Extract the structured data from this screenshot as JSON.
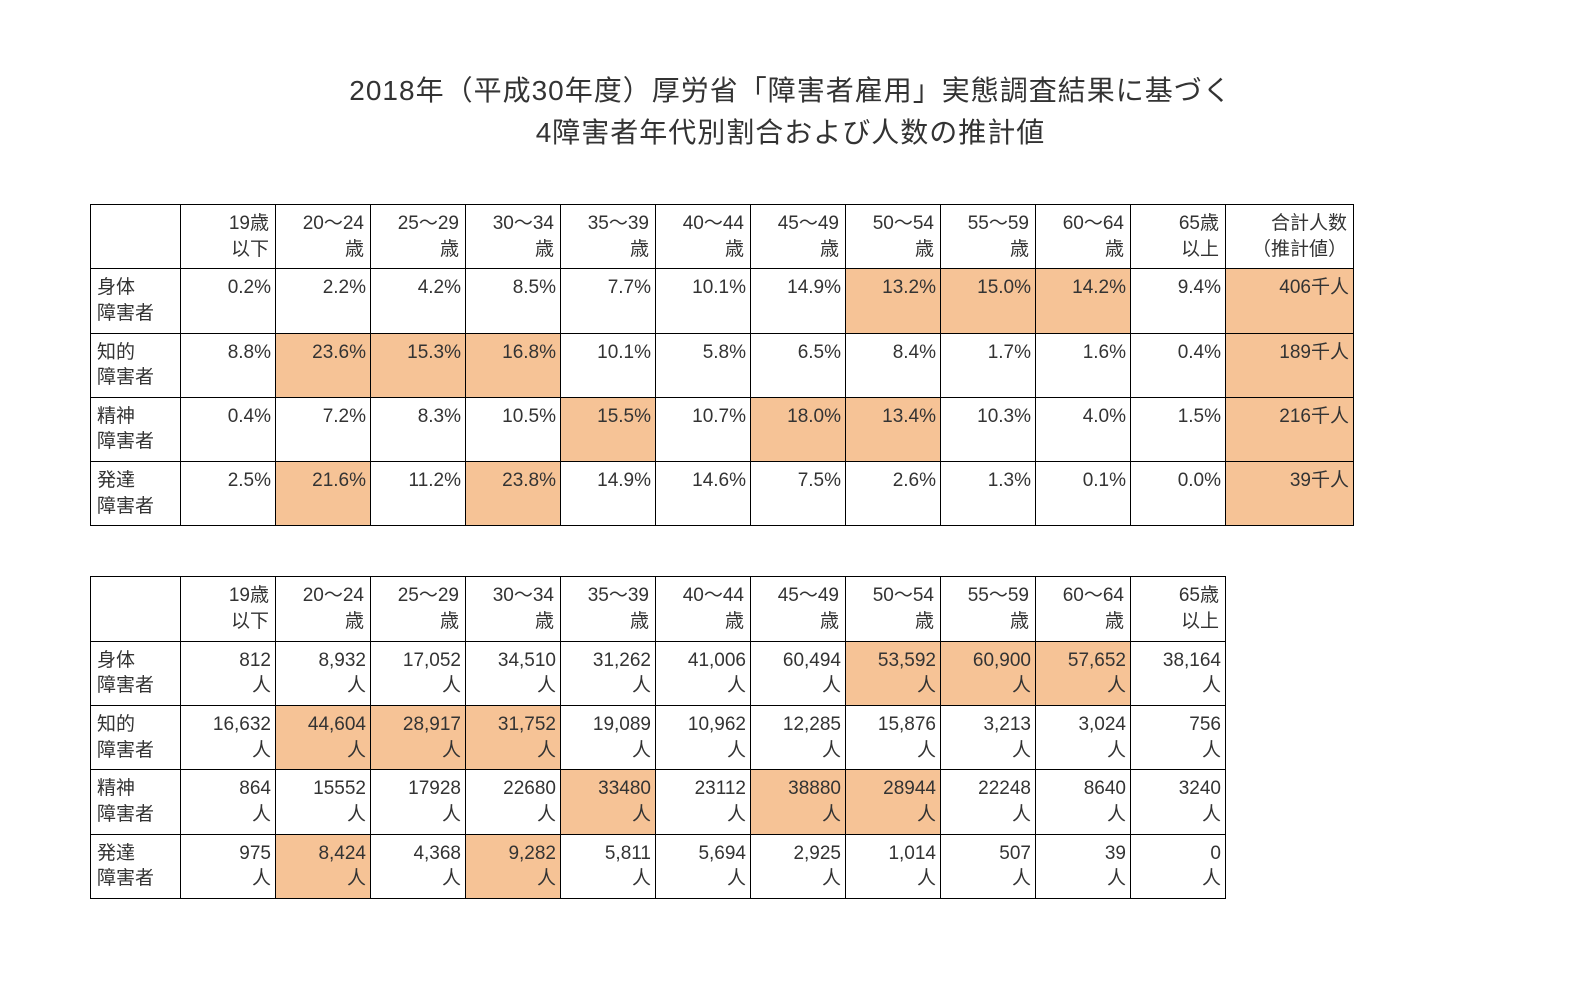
{
  "title_line1": "2018年（平成30年度）厚労省「障害者雇用」実態調査結果に基づく",
  "title_line2": "4障害者年代別割合および人数の推計値",
  "colors": {
    "background": "#ffffff",
    "text": "#333333",
    "border": "#000000",
    "highlight": "#f6c396"
  },
  "font_size_title": 28,
  "font_size_cell": 19,
  "age_headers": [
    "19歳\n以下",
    "20〜24\n歳",
    "25〜29\n歳",
    "30〜34\n歳",
    "35〜39\n歳",
    "40〜44\n歳",
    "45〜49\n歳",
    "50〜54\n歳",
    "55〜59\n歳",
    "60〜64\n歳",
    "65歳\n以上"
  ],
  "total_header": "合計人数\n（推計値）",
  "row_labels": [
    "身体\n障害者",
    "知的\n障害者",
    "精神\n障害者",
    "発達\n障害者"
  ],
  "table1": {
    "rows": [
      {
        "values": [
          "0.2%",
          "2.2%",
          "4.2%",
          "8.5%",
          "7.7%",
          "10.1%",
          "14.9%",
          "13.2%",
          "15.0%",
          "14.2%",
          "9.4%"
        ],
        "total": "406千人",
        "hl": [
          7,
          8,
          9
        ],
        "total_hl": true
      },
      {
        "values": [
          "8.8%",
          "23.6%",
          "15.3%",
          "16.8%",
          "10.1%",
          "5.8%",
          "6.5%",
          "8.4%",
          "1.7%",
          "1.6%",
          "0.4%"
        ],
        "total": "189千人",
        "hl": [
          1,
          2,
          3
        ],
        "total_hl": true
      },
      {
        "values": [
          "0.4%",
          "7.2%",
          "8.3%",
          "10.5%",
          "15.5%",
          "10.7%",
          "18.0%",
          "13.4%",
          "10.3%",
          "4.0%",
          "1.5%"
        ],
        "total": "216千人",
        "hl": [
          4,
          6,
          7
        ],
        "total_hl": true
      },
      {
        "values": [
          "2.5%",
          "21.6%",
          "11.2%",
          "23.8%",
          "14.9%",
          "14.6%",
          "7.5%",
          "2.6%",
          "1.3%",
          "0.1%",
          "0.0%"
        ],
        "total": "39千人",
        "hl": [
          1,
          3
        ],
        "total_hl": true
      }
    ]
  },
  "table2": {
    "unit": "人",
    "rows": [
      {
        "values": [
          "812",
          "8,932",
          "17,052",
          "34,510",
          "31,262",
          "41,006",
          "60,494",
          "53,592",
          "60,900",
          "57,652",
          "38,164"
        ],
        "hl": [
          7,
          8,
          9
        ]
      },
      {
        "values": [
          "16,632",
          "44,604",
          "28,917",
          "31,752",
          "19,089",
          "10,962",
          "12,285",
          "15,876",
          "3,213",
          "3,024",
          "756"
        ],
        "hl": [
          1,
          2,
          3
        ]
      },
      {
        "values": [
          "864",
          "15552",
          "17928",
          "22680",
          "33480",
          "23112",
          "38880",
          "28944",
          "22248",
          "8640",
          "3240"
        ],
        "hl": [
          4,
          6,
          7
        ]
      },
      {
        "values": [
          "975",
          "8,424",
          "4,368",
          "9,282",
          "5,811",
          "5,694",
          "2,925",
          "1,014",
          "507",
          "39",
          "0"
        ],
        "hl": [
          1,
          3
        ]
      }
    ]
  }
}
